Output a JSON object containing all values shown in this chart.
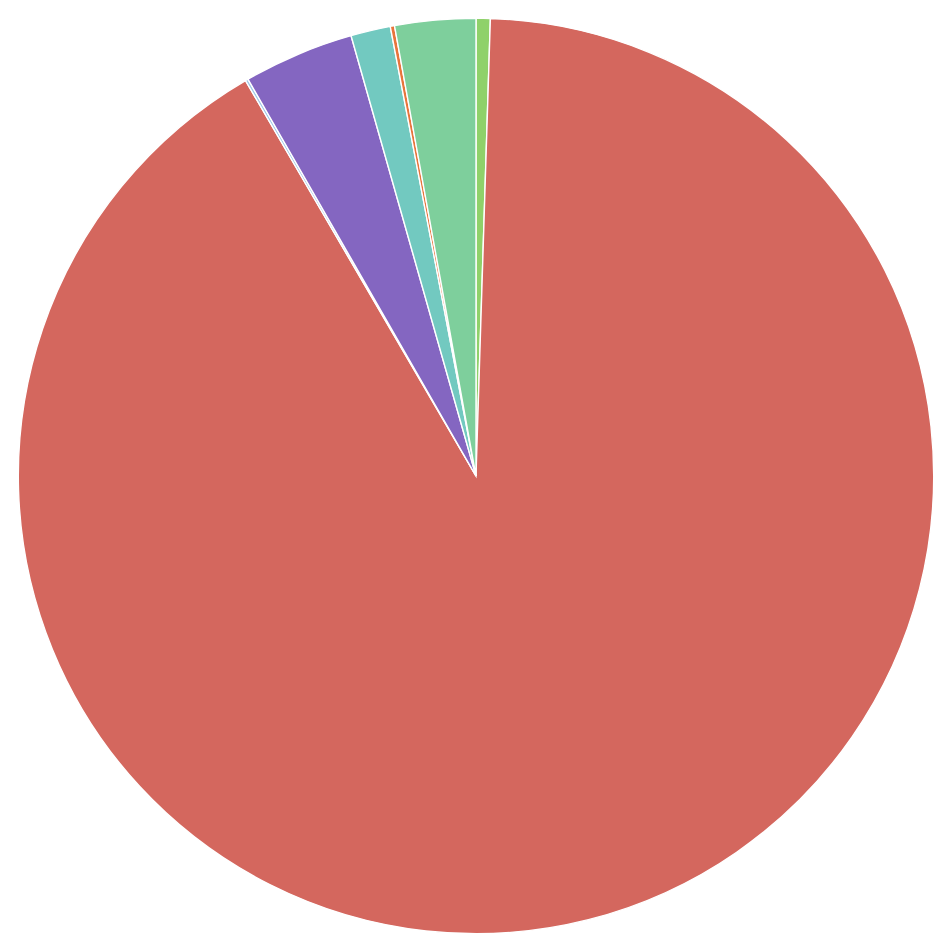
{
  "chart_data": {
    "type": "pie",
    "categories": [
      null,
      null,
      null,
      null,
      null,
      null,
      null
    ],
    "values": [
      0.5,
      91.1,
      0.1,
      3.9,
      1.4,
      0.15,
      2.85
    ],
    "colors": [
      "#8fd16a",
      "#d4675e",
      "#9fc8e8",
      "#8466c1",
      "#72c9c0",
      "#e8743b",
      "#7ecf9c"
    ]
  }
}
